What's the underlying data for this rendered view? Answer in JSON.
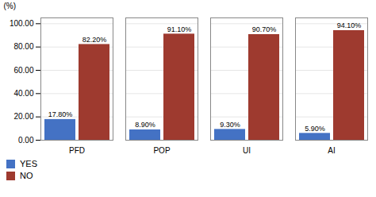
{
  "chart_data": {
    "type": "bar",
    "categories": [
      "PFD",
      "POP",
      "UI",
      "AI"
    ],
    "series": [
      {
        "name": "YES",
        "color": "#4472C4",
        "values": [
          17.8,
          8.9,
          9.3,
          5.9
        ],
        "value_labels": [
          "17.80%",
          "8.90%",
          "9.30%",
          "5.90%"
        ]
      },
      {
        "name": "NO",
        "color": "#9E3A2F",
        "values": [
          82.2,
          91.1,
          90.7,
          94.1
        ],
        "value_labels": [
          "82.20%",
          "91.10%",
          "90.70%",
          "94.10%"
        ]
      }
    ],
    "ylabel": "(%)",
    "ylim": [
      0,
      105
    ],
    "yticks": [
      {
        "value": 0,
        "label": "0.00"
      },
      {
        "value": 20,
        "label": "20.00"
      },
      {
        "value": 40,
        "label": "40.00"
      },
      {
        "value": 60,
        "label": "60.00"
      },
      {
        "value": 80,
        "label": "80.00"
      },
      {
        "value": 100,
        "label": "100.00"
      }
    ],
    "grid": true,
    "data_labels": true,
    "legend": "lower left"
  }
}
